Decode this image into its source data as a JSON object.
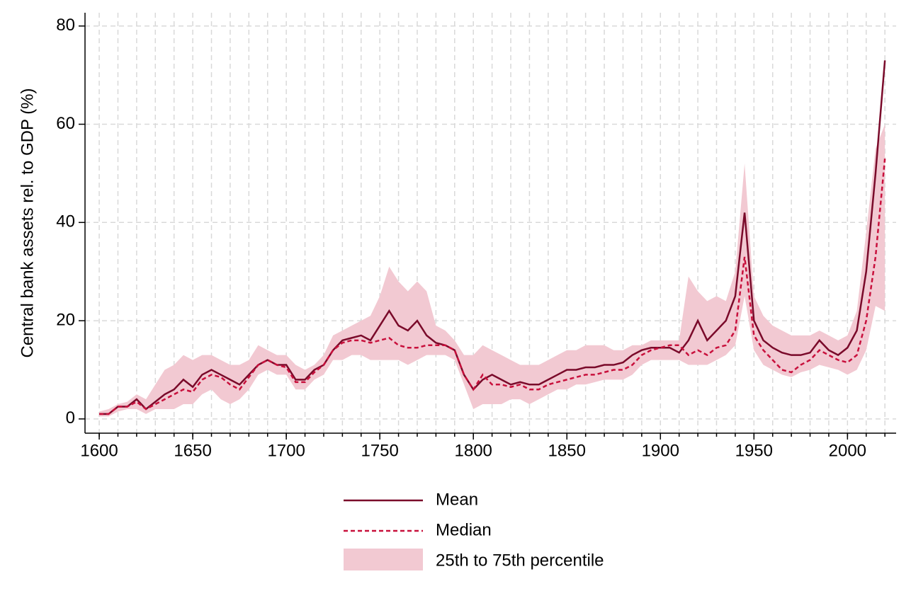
{
  "chart_data": {
    "type": "line",
    "y_label": "Central bank assets rel. to GDP (%)",
    "x": [
      1600,
      1605,
      1610,
      1615,
      1620,
      1625,
      1630,
      1635,
      1640,
      1645,
      1650,
      1655,
      1660,
      1665,
      1670,
      1675,
      1680,
      1685,
      1690,
      1695,
      1700,
      1705,
      1710,
      1715,
      1720,
      1725,
      1730,
      1735,
      1740,
      1745,
      1750,
      1755,
      1760,
      1765,
      1770,
      1775,
      1780,
      1785,
      1790,
      1795,
      1800,
      1805,
      1810,
      1815,
      1820,
      1825,
      1830,
      1835,
      1840,
      1845,
      1850,
      1855,
      1860,
      1865,
      1870,
      1875,
      1880,
      1885,
      1890,
      1895,
      1900,
      1905,
      1910,
      1915,
      1920,
      1925,
      1930,
      1935,
      1940,
      1945,
      1950,
      1955,
      1960,
      1965,
      1970,
      1975,
      1980,
      1985,
      1990,
      1995,
      2000,
      2005,
      2010,
      2015,
      2020
    ],
    "series": [
      {
        "name": "Mean",
        "color": "#7a0a2a",
        "dash": false,
        "values": [
          1,
          1,
          2.5,
          2.5,
          4,
          2,
          3.5,
          5,
          6,
          8,
          6.5,
          9,
          10,
          9,
          8,
          7,
          9,
          11,
          12,
          11,
          11,
          8,
          8,
          10,
          11,
          14,
          16,
          16.5,
          17,
          16,
          19,
          22,
          19,
          18,
          20,
          17,
          15.5,
          15,
          14,
          9,
          6,
          8,
          9,
          8,
          7,
          7.5,
          7,
          7,
          8,
          9,
          10,
          10,
          10.5,
          10.5,
          11,
          11,
          11.5,
          13,
          14,
          14.5,
          14.5,
          14.5,
          13.5,
          16,
          20,
          16,
          18,
          20,
          25,
          42,
          20,
          16,
          14.5,
          13.5,
          13,
          13,
          13.5,
          16,
          14,
          13,
          14.5,
          18,
          30,
          50,
          73
        ]
      },
      {
        "name": "Median",
        "color": "#c8103c",
        "dash": true,
        "values": [
          1,
          1,
          2.5,
          2.5,
          3.5,
          2,
          3,
          4,
          5,
          6,
          5.5,
          8,
          9,
          8.5,
          7,
          6,
          8.5,
          11,
          12,
          11,
          10.5,
          7.5,
          7.5,
          9.5,
          11,
          14,
          15.5,
          16,
          16,
          15.5,
          16,
          16.5,
          15,
          14.5,
          14.5,
          15,
          15,
          15,
          14,
          9,
          6,
          9,
          7,
          7,
          6.5,
          7,
          6,
          6,
          7,
          7.5,
          8,
          8.5,
          9,
          9,
          9.5,
          10,
          10,
          11,
          13,
          14,
          14.5,
          15,
          15,
          13,
          14,
          13,
          14.5,
          15,
          18,
          33,
          17,
          14,
          12,
          10,
          9.5,
          11,
          12,
          14,
          13,
          12,
          11.5,
          13,
          20,
          33,
          53
        ]
      }
    ],
    "band": {
      "name": "25th to 75th percentile",
      "color": "#f2c9d2",
      "lower": [
        0.5,
        0.5,
        1.5,
        2,
        2,
        1,
        2,
        2,
        2,
        3,
        3,
        5,
        6,
        4,
        3,
        4,
        6,
        9,
        10,
        9,
        9,
        6,
        6,
        8,
        9,
        12,
        12,
        13,
        13,
        12,
        12,
        12,
        12,
        11,
        12,
        13,
        13,
        13,
        12,
        7,
        2,
        3,
        3,
        3,
        4,
        4,
        3,
        4,
        5,
        6,
        6,
        7,
        7,
        7.5,
        8,
        8,
        8,
        9,
        11,
        12,
        12,
        12,
        12,
        11,
        11,
        11,
        12,
        13,
        15,
        25,
        14,
        11,
        10,
        9,
        8.5,
        9.5,
        10,
        11,
        10.5,
        10,
        9,
        10,
        14,
        23,
        22
      ],
      "upper": [
        1.5,
        2,
        3,
        3.5,
        5,
        4,
        7,
        10,
        11,
        13,
        12,
        13,
        13,
        12,
        11,
        11,
        12,
        15,
        14,
        13,
        13,
        11,
        10,
        11,
        13,
        17,
        18,
        19,
        20,
        21,
        25,
        31,
        28,
        26,
        28,
        26,
        19,
        18,
        16,
        13,
        13,
        15,
        14,
        13,
        12,
        11,
        11,
        11,
        12,
        13,
        14,
        14,
        15,
        15,
        15,
        14,
        14,
        15,
        15,
        16,
        16,
        16,
        16,
        29,
        26,
        24,
        25,
        24,
        30,
        52,
        25,
        21,
        19,
        18,
        17,
        17,
        17,
        18,
        17,
        16,
        17,
        22,
        38,
        55,
        60
      ]
    },
    "xlim": [
      1592.4,
      2026
    ],
    "ylim": [
      -2.9,
      82.7
    ],
    "xticks": [
      1600,
      1650,
      1700,
      1750,
      1800,
      1850,
      1900,
      1950,
      2000
    ],
    "xminorticks": [
      1600,
      1610,
      1620,
      1630,
      1640,
      1650,
      1660,
      1670,
      1680,
      1690,
      1700,
      1710,
      1720,
      1730,
      1740,
      1750,
      1760,
      1770,
      1780,
      1790,
      1800,
      1810,
      1820,
      1830,
      1840,
      1850,
      1860,
      1870,
      1880,
      1890,
      1900,
      1910,
      1920,
      1930,
      1940,
      1950,
      1960,
      1970,
      1980,
      1990,
      2000,
      2010,
      2020
    ],
    "yticks": [
      0,
      20,
      40,
      60,
      80
    ],
    "grid": true,
    "legend": "bottom"
  }
}
